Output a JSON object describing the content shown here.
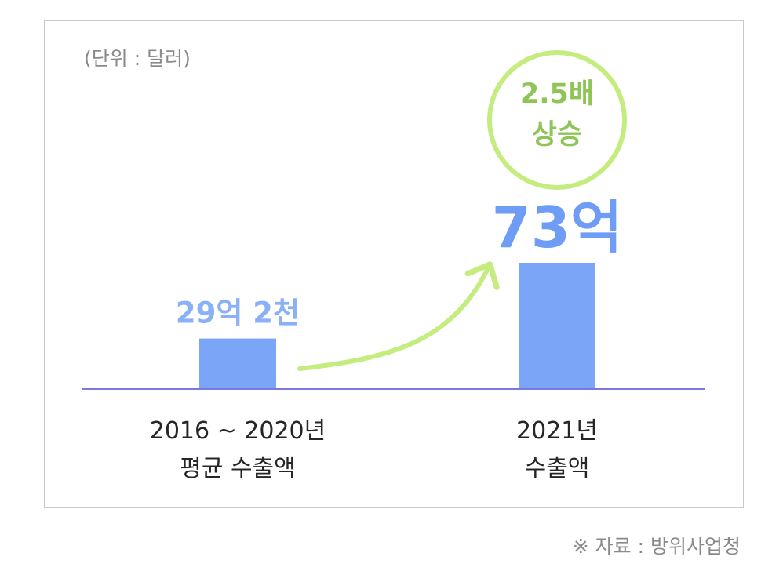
{
  "unit_note": "(단위 : 달러)",
  "badge": {
    "line1": "2.5배",
    "line2": "상승"
  },
  "source_note": "※ 자료 : 방위사업청",
  "colors": {
    "bar": "#7ba6f7",
    "baseline": "#7b78e6",
    "value_label_small": "#8ab0f8",
    "value_label_big": "#6f9cf5",
    "badge_and_arrow": "#c4ec7f",
    "badge_text": "#8fc456"
  },
  "chart_data": {
    "type": "bar",
    "categories": [
      [
        "2016 ~ 2020년",
        "평균 수출액"
      ],
      [
        "2021년",
        "수출액"
      ]
    ],
    "values": [
      2920000000,
      7300000000
    ],
    "value_labels": [
      "29억 2천",
      "73억"
    ],
    "unit": "달러",
    "title": "",
    "xlabel": "",
    "ylabel": "",
    "annotation": "2.5배 상승",
    "grid": false,
    "legend": false
  }
}
